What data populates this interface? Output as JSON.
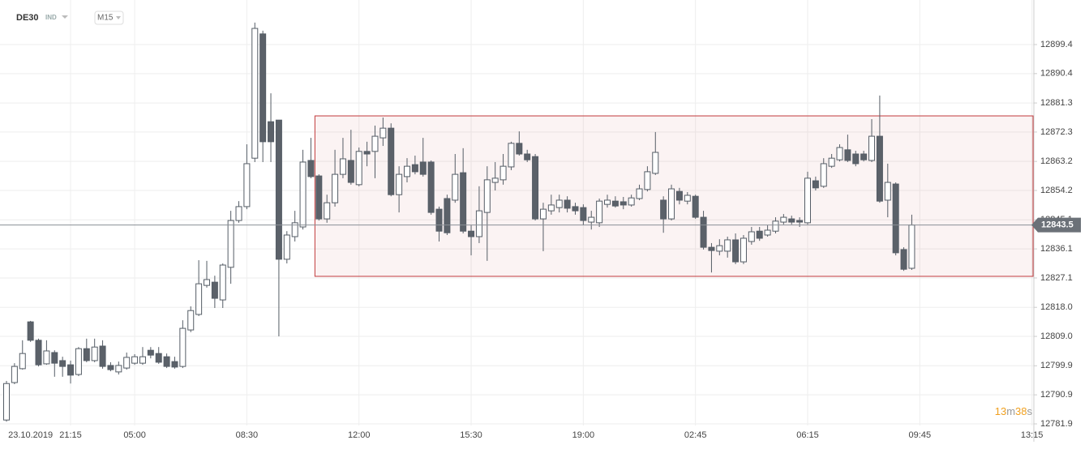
{
  "chart_data": {
    "type": "candlestick",
    "symbol": "DE30",
    "instrument_type": "IND",
    "timeframe": "M15",
    "categories": [
      null,
      null,
      null,
      "23.10.2019",
      null,
      null,
      null,
      null,
      "21:15",
      null,
      null,
      null,
      null,
      null,
      null,
      null,
      "05:00",
      null,
      null,
      null,
      null,
      null,
      null,
      null,
      null,
      null,
      null,
      null,
      null,
      null,
      "08:30",
      null,
      null,
      null,
      null,
      null,
      null,
      null,
      null,
      null,
      null,
      null,
      null,
      null,
      "12:00",
      null,
      null,
      null,
      null,
      null,
      null,
      null,
      null,
      null,
      null,
      null,
      null,
      null,
      "15:30",
      null,
      null,
      null,
      null,
      null,
      null,
      null,
      null,
      null,
      null,
      null,
      null,
      null,
      "19:00",
      null,
      null,
      null,
      null,
      null,
      null,
      null,
      null,
      null,
      null,
      null,
      null,
      null,
      "02:45",
      null,
      null,
      null,
      null,
      null,
      null,
      null,
      null,
      null,
      null,
      null,
      null,
      null,
      "06:15",
      null,
      null,
      null,
      null,
      null,
      null,
      null,
      null,
      null,
      null,
      null,
      null,
      null,
      "09:45",
      null,
      null,
      null,
      null,
      null,
      null,
      null,
      null,
      null,
      null,
      null,
      null,
      null,
      "13:15"
    ],
    "open": [
      12783.1,
      12794.7,
      12799.0,
      12813.5,
      12807.8,
      12800.5,
      12804.0,
      12801.5,
      12800.2,
      12797.2,
      12805.2,
      12801.5,
      12806.0,
      12800.0,
      12798.0,
      12799.2,
      12800.7,
      12800.7,
      12804.7,
      12803.7,
      12802.7,
      12801.2,
      12799.7,
      12811.0,
      12815.8,
      12824.8,
      12825.8,
      12820.3,
      12830.4,
      12844.9,
      12849.2,
      12864.2,
      12902.7,
      12875.5,
      12876.0,
      12832.9,
      12839.9,
      12842.9,
      12863.5,
      12858.7,
      12845.4,
      12850.4,
      12859.2,
      12863.5,
      12856.0,
      12866.3,
      12866.3,
      12870.5,
      12873.5,
      12852.9,
      12858.5,
      12862.2,
      12863.0,
      12863.0,
      12848.4,
      12851.7,
      12851.2,
      12859.7,
      12841.6,
      12839.9,
      12847.4,
      12856.7,
      12857.5,
      12861.5,
      12868.8,
      12865.5,
      12864.7,
      12845.4,
      12847.9,
      12848.9,
      12851.2,
      12849.2,
      12848.9,
      12844.4,
      12844.2,
      12849.9,
      12850.9,
      12850.7,
      12849.7,
      12851.7,
      12854.5,
      12859.5,
      12851.2,
      12845.4,
      12853.9,
      12850.9,
      12852.4,
      12845.9,
      12836.6,
      12835.4,
      12835.4,
      12838.9,
      12832.1,
      12838.4,
      12841.6,
      12840.4,
      12841.6,
      12844.4,
      12845.4,
      12844.9,
      12844.2,
      12857.2,
      12855.5,
      12861.7,
      12863.7,
      12866.8,
      12865.5,
      12865.5,
      12863.5,
      12871.0,
      12851.2,
      12856.2,
      12835.9,
      12830.1,
      null,
      null,
      null,
      null,
      null,
      null,
      null,
      null,
      null,
      null,
      null,
      null,
      null,
      null,
      null
    ],
    "high": [
      12795.2,
      12800.7,
      12807.8,
      12813.8,
      12808.3,
      12807.8,
      12804.7,
      12802.7,
      12801.5,
      12805.7,
      12808.3,
      12808.3,
      12807.8,
      12801.0,
      12801.2,
      12804.0,
      12803.5,
      12805.7,
      12805.7,
      12805.7,
      12803.7,
      12802.7,
      12814.0,
      12818.3,
      12832.6,
      12832.4,
      12827.8,
      12831.6,
      12847.9,
      12850.9,
      12868.5,
      12906.2,
      12903.7,
      12884.3,
      12876.0,
      12841.6,
      12847.9,
      12866.8,
      12870.5,
      12859.2,
      12852.9,
      12866.8,
      12870.5,
      12873.0,
      12867.5,
      12869.3,
      12874.3,
      12876.8,
      12875.0,
      12861.7,
      12864.2,
      12865.0,
      12870.5,
      12863.5,
      12849.2,
      12852.9,
      12865.5,
      12867.3,
      12843.4,
      12855.5,
      12861.7,
      12863.0,
      12865.5,
      12869.3,
      12872.5,
      12866.8,
      12865.5,
      12850.4,
      12852.9,
      12852.9,
      12852.4,
      12850.4,
      12849.9,
      12847.9,
      12851.7,
      12852.9,
      12852.4,
      12852.2,
      12852.9,
      12856.0,
      12861.7,
      12872.3,
      12852.4,
      12856.0,
      12855.0,
      12853.7,
      12852.9,
      12847.9,
      12837.9,
      12839.1,
      12839.9,
      12840.9,
      12840.4,
      12842.9,
      12842.9,
      12843.4,
      12845.9,
      12846.9,
      12846.4,
      12845.9,
      12860.0,
      12858.5,
      12864.2,
      12865.5,
      12868.5,
      12871.5,
      12866.5,
      12866.5,
      12876.3,
      12883.6,
      12862.5,
      12856.7,
      12836.6,
      12846.7,
      null,
      null,
      null,
      null,
      null,
      null,
      null,
      null,
      null,
      null,
      null,
      null,
      null,
      null,
      null
    ],
    "low": [
      12782.6,
      12794.2,
      12798.7,
      12807.3,
      12799.7,
      12800.2,
      12796.5,
      12796.5,
      12794.4,
      12796.7,
      12801.0,
      12801.0,
      12799.0,
      12798.2,
      12797.2,
      12798.7,
      12800.2,
      12800.2,
      12802.2,
      12800.5,
      12799.2,
      12799.0,
      12799.2,
      12810.3,
      12815.3,
      12824.1,
      12817.8,
      12817.8,
      12825.3,
      12844.2,
      12848.4,
      12863.0,
      12863.0,
      12863.0,
      12809.0,
      12831.6,
      12838.4,
      12842.1,
      12858.0,
      12844.9,
      12844.2,
      12849.2,
      12858.0,
      12856.0,
      12855.5,
      12861.7,
      12858.0,
      12868.0,
      12852.4,
      12847.4,
      12856.7,
      12859.2,
      12858.5,
      12846.7,
      12838.4,
      12840.4,
      12850.4,
      12840.9,
      12834.1,
      12837.9,
      12832.4,
      12854.2,
      12856.0,
      12860.5,
      12865.0,
      12863.0,
      12844.9,
      12835.4,
      12846.7,
      12847.4,
      12847.4,
      12846.7,
      12843.4,
      12842.1,
      12842.9,
      12848.9,
      12848.9,
      12848.4,
      12849.2,
      12851.2,
      12853.9,
      12859.0,
      12841.1,
      12844.9,
      12849.9,
      12849.9,
      12845.4,
      12835.9,
      12828.8,
      12834.1,
      12833.4,
      12831.4,
      12831.4,
      12837.4,
      12838.6,
      12839.9,
      12840.9,
      12843.7,
      12843.7,
      12842.9,
      12843.7,
      12854.2,
      12855.0,
      12861.2,
      12863.2,
      12863.0,
      12861.7,
      12863.2,
      12863.0,
      12850.4,
      12845.9,
      12834.1,
      12829.3,
      12829.6,
      null,
      null,
      null,
      null,
      null,
      null,
      null,
      null,
      null,
      null,
      null,
      null,
      null,
      null,
      null
    ],
    "close": [
      12794.4,
      12799.7,
      12803.7,
      12807.8,
      12800.2,
      12804.5,
      12800.7,
      12799.7,
      12797.0,
      12805.2,
      12801.5,
      12805.7,
      12799.7,
      12798.7,
      12800.0,
      12802.5,
      12802.7,
      12802.7,
      12803.2,
      12801.0,
      12799.7,
      12799.5,
      12811.5,
      12817.0,
      12825.3,
      12826.6,
      12820.8,
      12831.1,
      12844.9,
      12849.2,
      12862.5,
      12904.4,
      12869.3,
      12869.3,
      12832.9,
      12840.4,
      12844.2,
      12863.0,
      12858.5,
      12845.4,
      12850.4,
      12859.2,
      12864.0,
      12856.7,
      12866.3,
      12865.5,
      12871.0,
      12873.5,
      12852.9,
      12859.2,
      12861.7,
      12860.0,
      12859.2,
      12847.4,
      12841.6,
      12841.1,
      12859.2,
      12841.6,
      12839.9,
      12847.9,
      12857.5,
      12858.0,
      12861.7,
      12868.8,
      12865.5,
      12863.7,
      12845.4,
      12848.4,
      12849.7,
      12851.2,
      12848.7,
      12847.9,
      12844.9,
      12845.9,
      12850.9,
      12851.2,
      12849.4,
      12849.7,
      12851.9,
      12854.7,
      12860.0,
      12866.0,
      12845.4,
      12854.7,
      12851.2,
      12852.7,
      12845.9,
      12836.6,
      12835.6,
      12837.1,
      12838.9,
      12832.1,
      12839.4,
      12841.4,
      12839.4,
      12841.9,
      12844.7,
      12845.9,
      12844.4,
      12844.4,
      12858.0,
      12855.0,
      12862.5,
      12864.2,
      12867.5,
      12863.5,
      12862.5,
      12863.7,
      12871.0,
      12850.9,
      12856.7,
      12834.9,
      12829.8,
      12843.5,
      null,
      null,
      null,
      null,
      null,
      null,
      null,
      null,
      null,
      null,
      null,
      null,
      null,
      null,
      null
    ],
    "up_color": "#ffffff",
    "down_color": "#5b6169",
    "ylim": [
      12781.4,
      12913.2
    ],
    "yticks": [
      12781.9,
      12790.9,
      12799.9,
      {
        "value": 12809,
        "label": "12809.0"
      },
      {
        "value": 12818,
        "label": "12818.0"
      },
      12827.1,
      12836.1,
      12845.1,
      12854.2,
      12863.2,
      12872.3,
      12881.3,
      12890.4,
      12899.4
    ],
    "grid": true,
    "zone": {
      "low": 12827.6,
      "high": 12877.3,
      "start": 39,
      "color": "#c0393b"
    },
    "last_price": 12843.5,
    "countdown": [
      "13",
      "m",
      "38",
      "s"
    ]
  }
}
